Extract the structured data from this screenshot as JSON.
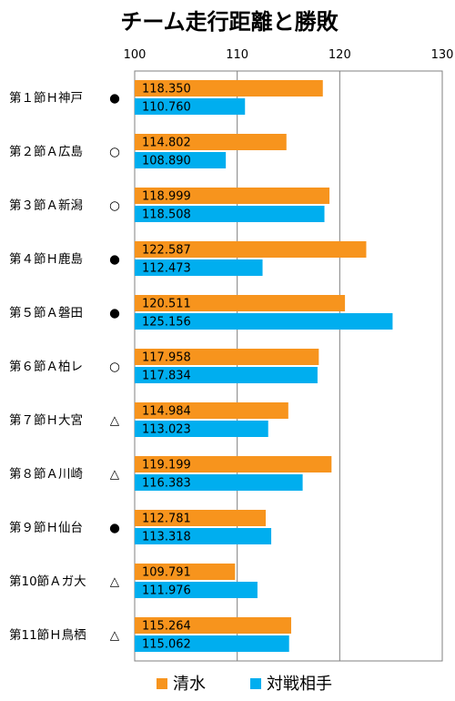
{
  "chart_data": {
    "type": "bar",
    "orientation": "horizontal",
    "title": "チーム走行距離と勝敗",
    "xlim": [
      100,
      130
    ],
    "xticks": [
      100,
      110,
      120,
      130
    ],
    "grid": true,
    "legend_position": "bottom",
    "categories": [
      "第１節Ｈ神戸",
      "第２節Ａ広島",
      "第３節Ａ新潟",
      "第４節Ｈ鹿島",
      "第５節Ａ磐田",
      "第６節Ａ柏レ",
      "第７節Ｈ大宮",
      "第８節Ａ川崎",
      "第９節Ｈ仙台",
      "第10節Ａガ大",
      "第11節Ｈ鳥栖"
    ],
    "results": [
      "●",
      "○",
      "○",
      "●",
      "●",
      "○",
      "△",
      "△",
      "●",
      "△",
      "△"
    ],
    "series": [
      {
        "name": "清水",
        "color": "#F7941D",
        "values": [
          118.35,
          114.802,
          118.999,
          122.587,
          120.511,
          117.958,
          114.984,
          119.199,
          112.781,
          109.791,
          115.264
        ],
        "labels": [
          "118.350",
          "114.802",
          "118.999",
          "122.587",
          "120.511",
          "117.958",
          "114.984",
          "119.199",
          "112.781",
          "109.791",
          "115.264"
        ]
      },
      {
        "name": "対戦相手",
        "color": "#00AEEF",
        "values": [
          110.76,
          108.89,
          118.508,
          112.473,
          125.156,
          117.834,
          113.023,
          116.383,
          113.318,
          111.976,
          115.062
        ],
        "labels": [
          "110.760",
          "108.890",
          "118.508",
          "112.473",
          "125.156",
          "117.834",
          "113.023",
          "116.383",
          "113.318",
          "111.976",
          "115.062"
        ]
      }
    ]
  }
}
